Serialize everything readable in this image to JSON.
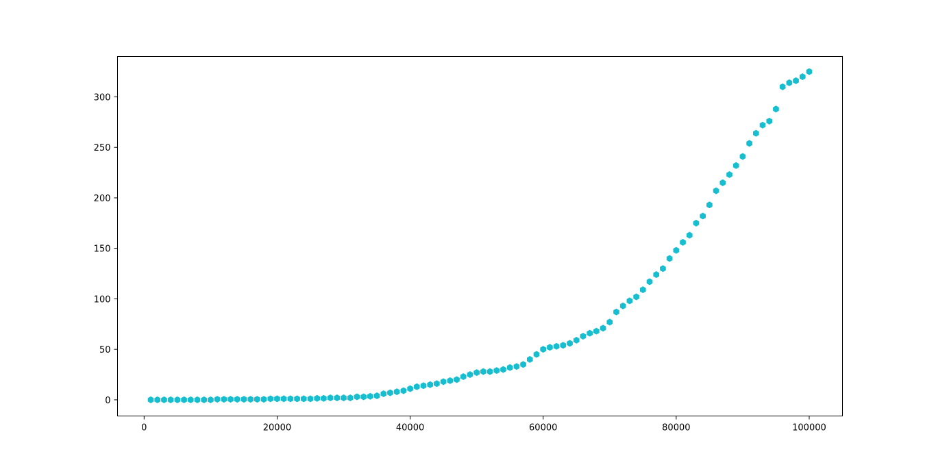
{
  "chart_data": {
    "type": "scatter",
    "title": "",
    "xlabel": "",
    "ylabel": "",
    "xlim": [
      -4000,
      105000
    ],
    "ylim": [
      -16,
      340
    ],
    "x_ticks": [
      0,
      20000,
      40000,
      60000,
      80000,
      100000
    ],
    "y_ticks": [
      0,
      50,
      100,
      150,
      200,
      250,
      300
    ],
    "x_tick_labels": [
      "0",
      "20000",
      "40000",
      "60000",
      "80000",
      "100000"
    ],
    "y_tick_labels": [
      "0",
      "50",
      "100",
      "150",
      "200",
      "250",
      "300"
    ],
    "marker": "hexagon",
    "color": "#17becf",
    "grid": false,
    "series": [
      {
        "x": [
          1000,
          2000,
          3000,
          4000,
          5000,
          6000,
          7000,
          8000,
          9000,
          10000,
          11000,
          12000,
          13000,
          14000,
          15000,
          16000,
          17000,
          18000,
          19000,
          20000,
          21000,
          22000,
          23000,
          24000,
          25000,
          26000,
          27000,
          28000,
          29000,
          30000,
          31000,
          32000,
          33000,
          34000,
          35000,
          36000,
          37000,
          38000,
          39000,
          40000,
          41000,
          42000,
          43000,
          44000,
          45000,
          46000,
          47000,
          48000,
          49000,
          50000,
          51000,
          52000,
          53000,
          54000,
          55000,
          56000,
          57000,
          58000,
          59000,
          60000,
          61000,
          62000,
          63000,
          64000,
          65000,
          66000,
          67000,
          68000,
          69000,
          70000,
          71000,
          72000,
          73000,
          74000,
          75000,
          76000,
          77000,
          78000,
          79000,
          80000,
          81000,
          82000,
          83000,
          84000,
          85000,
          86000,
          87000,
          88000,
          89000,
          90000,
          91000,
          92000,
          93000,
          94000,
          95000,
          96000,
          97000,
          98000,
          99000,
          100000
        ],
        "y": [
          0,
          0,
          0,
          0,
          0,
          0,
          0,
          0,
          0,
          0,
          0.5,
          0.5,
          0.5,
          0.5,
          0.5,
          0.5,
          0.5,
          0.5,
          1,
          1,
          1,
          1,
          1,
          1,
          1,
          1.5,
          1.5,
          2,
          2,
          2,
          2,
          3,
          3,
          3.5,
          4,
          6,
          7,
          8,
          9,
          11,
          13,
          14,
          15,
          16,
          18,
          19,
          20,
          23,
          25,
          27,
          28,
          28,
          29,
          30,
          32,
          33,
          35,
          40,
          45,
          50,
          52,
          53,
          54,
          56,
          59,
          63,
          66,
          68,
          71,
          77,
          87,
          93,
          98,
          102,
          109,
          117,
          124,
          130,
          140,
          148,
          156,
          163,
          175,
          182,
          193,
          207,
          215,
          223,
          232,
          241,
          254,
          264,
          272,
          276,
          288,
          310,
          314,
          316,
          320,
          325
        ]
      }
    ]
  }
}
